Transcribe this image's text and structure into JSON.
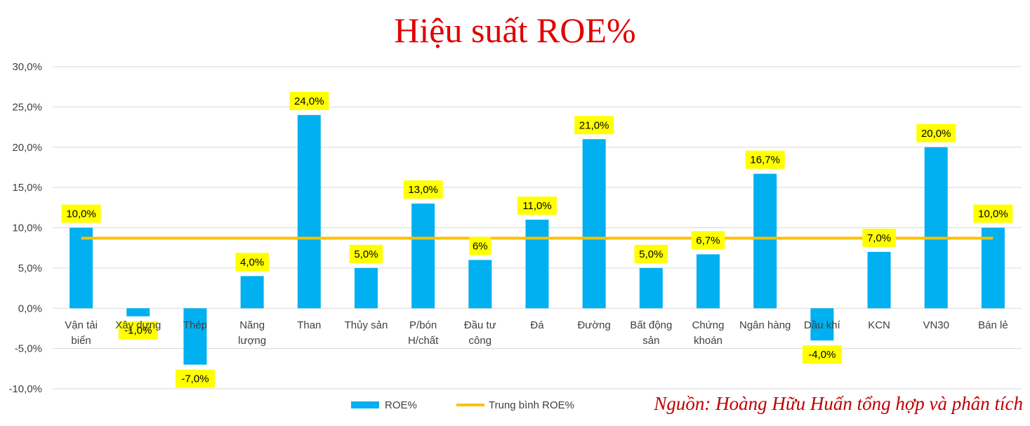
{
  "chart_data": {
    "type": "bar",
    "title": "Hiệu suất ROE%",
    "categories": [
      [
        "Vận tải",
        "biển"
      ],
      [
        "Xây dựng"
      ],
      [
        "Thép"
      ],
      [
        "Năng",
        "lượng"
      ],
      [
        "Than"
      ],
      [
        "Thủy sản"
      ],
      [
        "P/bón",
        "H/chất"
      ],
      [
        "Đầu tư",
        "công"
      ],
      [
        "Đá"
      ],
      [
        "Đường"
      ],
      [
        "Bất động",
        "sản"
      ],
      [
        "Chứng",
        "khoán"
      ],
      [
        "Ngân hàng"
      ],
      [
        "Dầu khí"
      ],
      [
        "KCN"
      ],
      [
        "VN30"
      ],
      [
        "Bán lẻ"
      ]
    ],
    "series": [
      {
        "name": "ROE%",
        "type": "bar",
        "color": "#00b0f0",
        "values": [
          10.0,
          -1.0,
          -7.0,
          4.0,
          24.0,
          5.0,
          13.0,
          6.0,
          11.0,
          21.0,
          5.0,
          6.7,
          16.7,
          -4.0,
          7.0,
          20.0,
          10.0
        ],
        "data_labels": [
          "10,0%",
          "-1,0%",
          "-7,0%",
          "4,0%",
          "24,0%",
          "5,0%",
          "13,0%",
          "6%",
          "11,0%",
          "21,0%",
          "5,0%",
          "6,7%",
          "16,7%",
          "-4,0%",
          "7,0%",
          "20,0%",
          "10,0%"
        ]
      },
      {
        "name": "Trung bình ROE%",
        "type": "line",
        "color": "#ffc000",
        "value": 8.7
      }
    ],
    "ylim": [
      -10,
      30
    ],
    "yticks": [
      30,
      25,
      20,
      15,
      10,
      5,
      0,
      -5,
      -10
    ],
    "ytick_labels": [
      "30,0%",
      "25,0%",
      "20,0%",
      "15,0%",
      "10,0%",
      "5,0%",
      "0,0%",
      "-5,0%",
      "-10,0%"
    ],
    "label_highlight_color": "#ffff00",
    "gridlines": true,
    "legend_position": "bottom",
    "source": "Nguồn: Hoàng Hữu Huấn tổng hợp và phân tích"
  }
}
